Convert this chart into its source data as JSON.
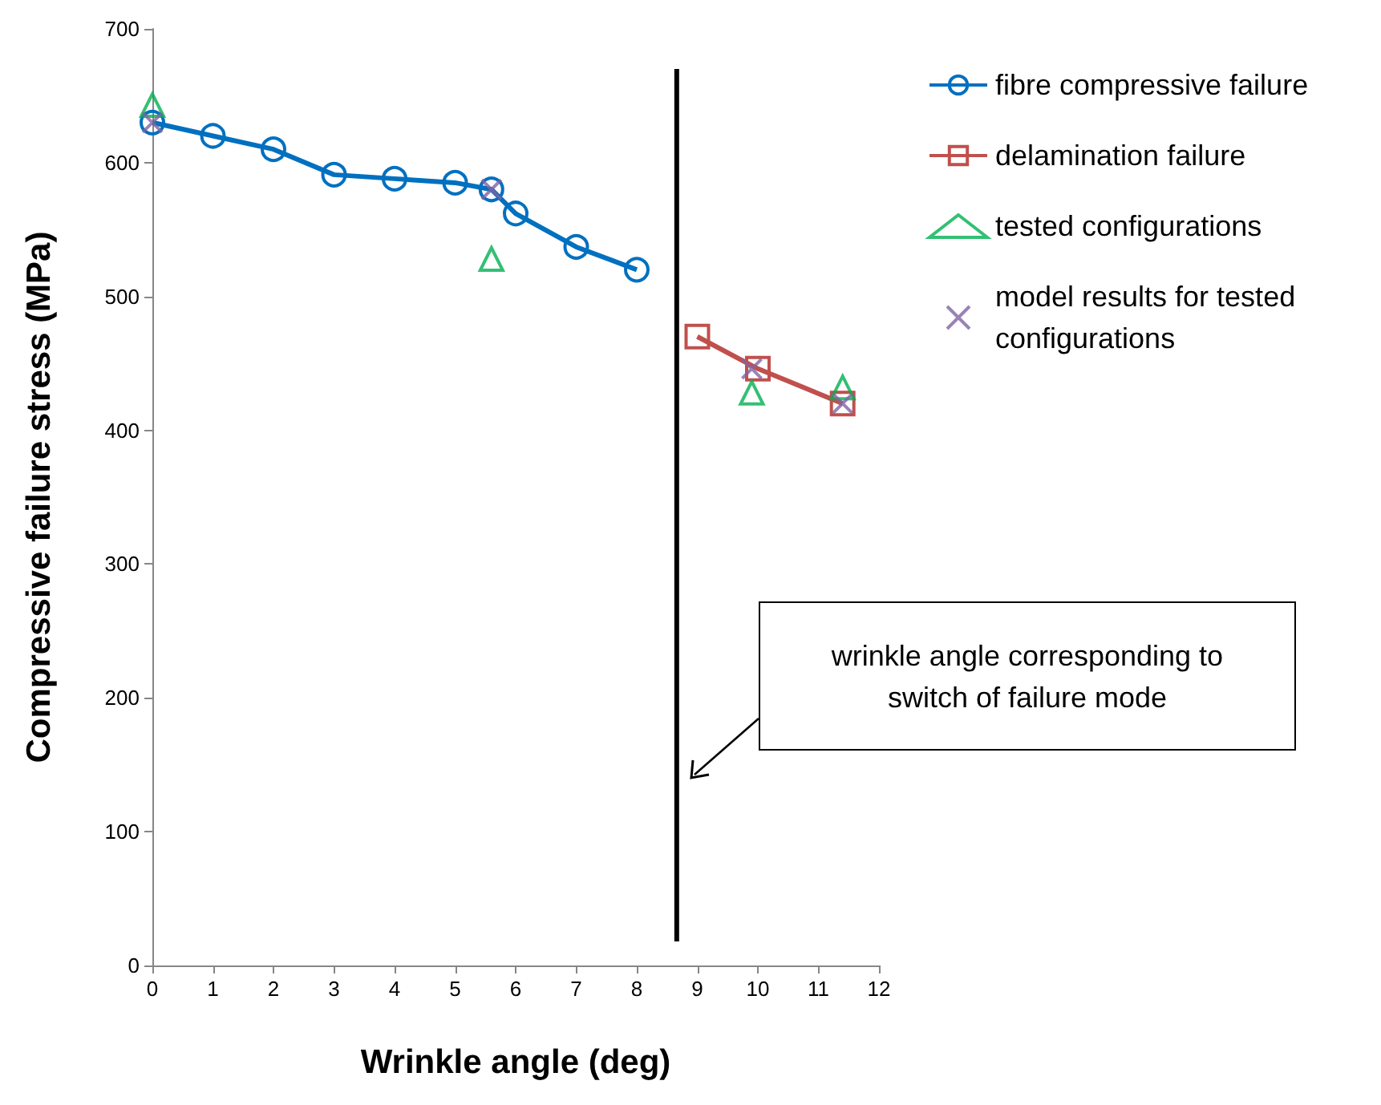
{
  "chart_data": {
    "type": "line",
    "xlabel": "Wrinkle angle (deg)",
    "ylabel": "Compressive failure stress (MPa)",
    "xlim": [
      0,
      12
    ],
    "xticks": [
      0,
      1,
      2,
      3,
      4,
      5,
      6,
      7,
      8,
      9,
      10,
      11,
      12
    ],
    "ylim": [
      0,
      700
    ],
    "yticks": [
      0,
      100,
      200,
      300,
      400,
      500,
      600,
      700
    ],
    "grid": false,
    "legend": "right",
    "series": [
      {
        "name": "fibre compressive failure",
        "marker": "circle",
        "color": "#0070c0",
        "x": [
          0,
          1,
          2,
          3,
          4,
          5,
          5.6,
          6,
          7,
          8
        ],
        "values": [
          630,
          620,
          610,
          591,
          588,
          585,
          580,
          562,
          537,
          520
        ]
      },
      {
        "name": "delamination failure",
        "marker": "square",
        "color": "#c0504d",
        "x": [
          9,
          10,
          11.4
        ],
        "values": [
          470,
          446,
          420
        ]
      },
      {
        "name": "tested configurations",
        "type": "scatter",
        "marker": "triangle",
        "color": "#00b050",
        "x": [
          0,
          5.6,
          9.9,
          11.4
        ],
        "values": [
          643,
          528,
          428,
          432
        ]
      },
      {
        "name": "model results for tested configurations",
        "type": "scatter",
        "marker": "cross",
        "color": "#8064a2",
        "x": [
          0,
          5.6,
          9.9,
          11.4
        ],
        "values": [
          630,
          580,
          446,
          420
        ]
      },
      {
        "marker": "none",
        "color": "#000000",
        "x": [
          8.66,
          8.66
        ],
        "values": [
          18,
          670
        ]
      }
    ],
    "annotations": [
      "wrinkle angle corresponding to switch of failure mode"
    ]
  }
}
